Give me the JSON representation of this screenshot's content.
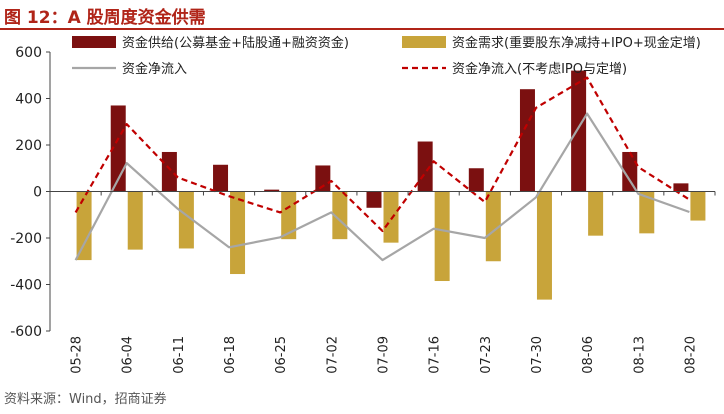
{
  "figure": {
    "title": "图 12：A 股周度资金供需",
    "source": "资料来源：Wind，招商证券"
  },
  "colors": {
    "title": "#b02418",
    "supply": "#7b1010",
    "demand": "#c8a43a",
    "net_flow": "#a6a6a6",
    "net_flow_ex_ipo": "#c00000"
  },
  "chart_data": {
    "type": "bar",
    "categories": [
      "05-28",
      "06-04",
      "06-11",
      "06-18",
      "06-25",
      "07-02",
      "07-09",
      "07-16",
      "07-23",
      "07-30",
      "08-06",
      "08-13",
      "08-20"
    ],
    "ylim": [
      -600,
      600
    ],
    "yticks": [
      -600,
      -400,
      -200,
      0,
      200,
      400,
      600
    ],
    "grid": false,
    "legend_position": "top",
    "series": [
      {
        "name": "资金供给(公募基金+陆股通+融资资金)",
        "type": "bar",
        "values": [
          0,
          370,
          170,
          115,
          8,
          112,
          -70,
          215,
          100,
          440,
          520,
          170,
          35
        ]
      },
      {
        "name": "资金需求(重要股东净减持+IPO+现金定增)",
        "type": "bar",
        "values": [
          -295,
          -250,
          -245,
          -355,
          -205,
          -205,
          -220,
          -385,
          -300,
          -465,
          -190,
          -180,
          -125
        ]
      },
      {
        "name": "资金净流入",
        "type": "line",
        "values": [
          -295,
          122,
          -75,
          -240,
          -197,
          -90,
          -295,
          -160,
          -200,
          -25,
          335,
          -10,
          -88
        ]
      },
      {
        "name": "资金净流入(不考虑IPO与定增)",
        "type": "line",
        "values": [
          -90,
          290,
          60,
          -20,
          -90,
          45,
          -170,
          130,
          -45,
          360,
          490,
          105,
          -35
        ]
      }
    ]
  }
}
